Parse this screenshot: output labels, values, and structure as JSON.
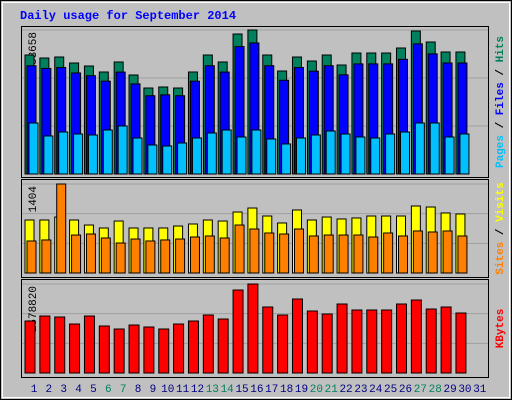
{
  "chart_data": [
    {
      "type": "bar",
      "title": "Daily usage for September 2014",
      "label_separator": " / ",
      "ylim": [
        0,
        33658
      ],
      "yticks": [
        33658
      ],
      "series": [
        {
          "name": "Hits",
          "color": "#00805c",
          "values": [
            27814,
            27114,
            27347,
            25946,
            25244,
            23841,
            26178,
            23140,
            20101,
            20335,
            20101,
            23841,
            27814,
            26178,
            32722,
            33658,
            27814,
            24075,
            27347,
            26412,
            27814,
            25478,
            28282,
            28282,
            28282,
            29451,
            33424,
            30852,
            28516,
            28516,
            null
          ]
        },
        {
          "name": "Files",
          "color": "#0000ff",
          "values": [
            25311,
            24674,
            24886,
            23611,
            22972,
            21695,
            23822,
            21057,
            18292,
            18505,
            18292,
            21695,
            25311,
            23822,
            29777,
            30629,
            25311,
            21908,
            24886,
            24035,
            25311,
            23185,
            25737,
            25737,
            25737,
            26800,
            30416,
            28075,
            25950,
            25950,
            null
          ]
        },
        {
          "name": "Pages",
          "color": "#00c0ff",
          "values": [
            11921,
            8882,
            9817,
            9350,
            9116,
            10285,
            11220,
            8415,
            6778,
            6545,
            7246,
            8415,
            9583,
            10285,
            8648,
            10285,
            8181,
            7012,
            8415,
            9116,
            10051,
            9350,
            8648,
            8415,
            9350,
            9817,
            11921,
            11921,
            8648,
            9350,
            null
          ]
        }
      ]
    },
    {
      "type": "bar",
      "label_separator": " / ",
      "ylim": [
        0,
        1404
      ],
      "yticks": [
        1404
      ],
      "series": [
        {
          "name": "Visits",
          "color": "#ffff00",
          "values": [
            836,
            836,
            883,
            836,
            757,
            710,
            820,
            710,
            710,
            710,
            741,
            773,
            836,
            820,
            962,
            1025,
            899,
            789,
            994,
            836,
            883,
            852,
            868,
            899,
            899,
            899,
            1057,
            1041,
            947,
            931,
            null
          ]
        },
        {
          "name": "Sites",
          "color": "#ff8000",
          "values": [
            505,
            521,
            1404,
            599,
            615,
            552,
            473,
            536,
            505,
            521,
            536,
            568,
            584,
            552,
            757,
            694,
            631,
            615,
            694,
            584,
            599,
            599,
            599,
            568,
            631,
            584,
            663,
            647,
            663,
            584,
            null
          ]
        }
      ]
    },
    {
      "type": "bar",
      "ylim": [
        0,
        1578820
      ],
      "yticks": [
        1578820
      ],
      "categories": [
        "1",
        "2",
        "3",
        "4",
        "5",
        "6",
        "7",
        "8",
        "9",
        "10",
        "11",
        "12",
        "13",
        "14",
        "15",
        "16",
        "17",
        "18",
        "19",
        "20",
        "21",
        "22",
        "23",
        "24",
        "25",
        "26",
        "27",
        "28",
        "29",
        "30",
        "31"
      ],
      "category_colors": [
        "#000080",
        "#000080",
        "#000080",
        "#000080",
        "#000080",
        "#00805c",
        "#00805c",
        "#000080",
        "#000080",
        "#000080",
        "#000080",
        "#000080",
        "#00805c",
        "#00805c",
        "#000080",
        "#000080",
        "#000080",
        "#000080",
        "#000080",
        "#00805c",
        "#00805c",
        "#000080",
        "#000080",
        "#000080",
        "#000080",
        "#000080",
        "#00805c",
        "#00805c",
        "#000080",
        "#000080",
        "#000080"
      ],
      "series": [
        {
          "name": "KBytes",
          "color": "#ff0000",
          "values": [
            922461,
            1011154,
            993414,
            869237,
            1011154,
            833759,
            780539,
            851498,
            816019,
            780539,
            869237,
            922461,
            1028893,
            957936,
            1472381,
            1578820,
            1170811,
            1028893,
            1312727,
            1099855,
            1046633,
            1224031,
            1117592,
            1117592,
            1117592,
            1224031,
            1294987,
            1135331,
            1170811,
            1064373,
            null
          ]
        }
      ]
    }
  ]
}
